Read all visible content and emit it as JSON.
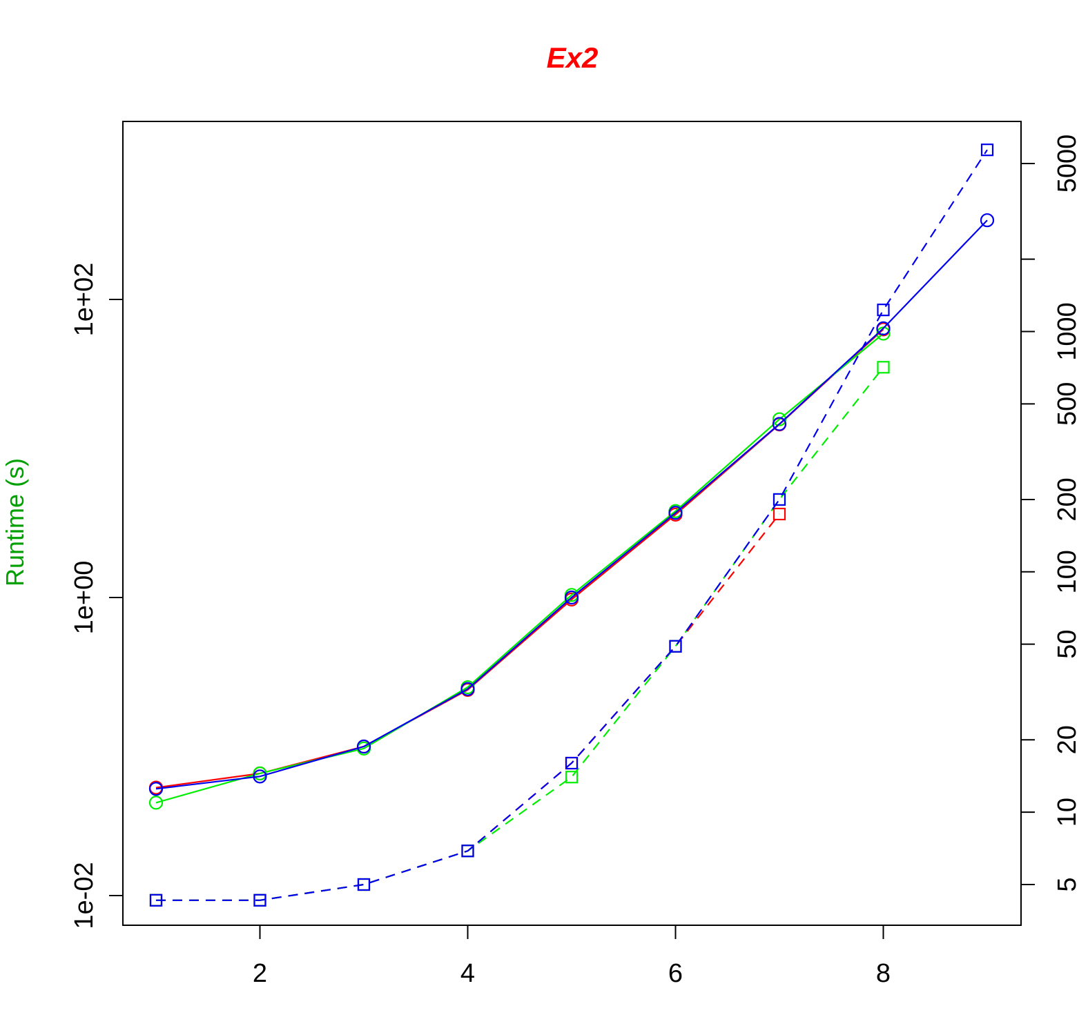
{
  "chart_data": {
    "type": "line",
    "title": "Ex2",
    "title_color": "#ff0000",
    "ylabel": "Runtime (s)",
    "ylabel_color": "#00a000",
    "xlabel": "",
    "x_ticks": [
      2,
      4,
      6,
      8
    ],
    "xlim": [
      1,
      9
    ],
    "left_axis": {
      "scale": "log",
      "ticks": [
        0.01,
        1,
        100
      ],
      "tick_labels": [
        "1e-02",
        "1e+00",
        "1e+02"
      ]
    },
    "right_axis": {
      "scale": "log",
      "ticks": [
        5,
        10,
        20,
        50,
        100,
        200,
        500,
        1000,
        2000,
        5000
      ],
      "tick_labels": [
        "5",
        "10",
        "20",
        "50",
        "100",
        "200",
        "500",
        "1000",
        "",
        "5000"
      ]
    },
    "grid": false,
    "legend": "none",
    "series": [
      {
        "axis": "left",
        "style": "solid",
        "marker": "circle",
        "color": "#ff0000",
        "x": [
          1,
          2,
          3,
          4,
          5,
          6,
          7,
          8
        ],
        "y": [
          0.053,
          0.066,
          0.1,
          0.24,
          0.97,
          3.6,
          14.5,
          63
        ]
      },
      {
        "axis": "left",
        "style": "solid",
        "marker": "circle",
        "color": "#00ee00",
        "x": [
          1,
          2,
          3,
          4,
          5,
          6,
          7,
          8
        ],
        "y": [
          0.042,
          0.066,
          0.097,
          0.25,
          1.04,
          3.8,
          15.7,
          59
        ]
      },
      {
        "axis": "left",
        "style": "solid",
        "marker": "circle",
        "color": "#0000ee",
        "x": [
          1,
          2,
          3,
          4,
          5,
          6,
          7,
          8,
          9
        ],
        "y": [
          0.052,
          0.063,
          0.1,
          0.243,
          1.0,
          3.7,
          14.6,
          64,
          340
        ]
      },
      {
        "axis": "right",
        "style": "dashed",
        "marker": "square",
        "color": "#ff0000",
        "x": [
          1,
          2,
          3,
          4,
          5,
          6,
          7
        ],
        "y": [
          4.3,
          4.3,
          5.0,
          6.9,
          16,
          49,
          174
        ]
      },
      {
        "axis": "right",
        "style": "dashed",
        "marker": "square",
        "color": "#00ee00",
        "x": [
          1,
          2,
          3,
          4,
          5,
          6,
          7,
          8
        ],
        "y": [
          4.3,
          4.3,
          5.0,
          6.9,
          14,
          49,
          200,
          710
        ]
      },
      {
        "axis": "right",
        "style": "dashed",
        "marker": "square",
        "color": "#0000ee",
        "x": [
          1,
          2,
          3,
          4,
          5,
          6,
          7,
          8,
          9
        ],
        "y": [
          4.3,
          4.3,
          5.0,
          6.9,
          16,
          49,
          200,
          1230,
          5700
        ]
      }
    ]
  }
}
